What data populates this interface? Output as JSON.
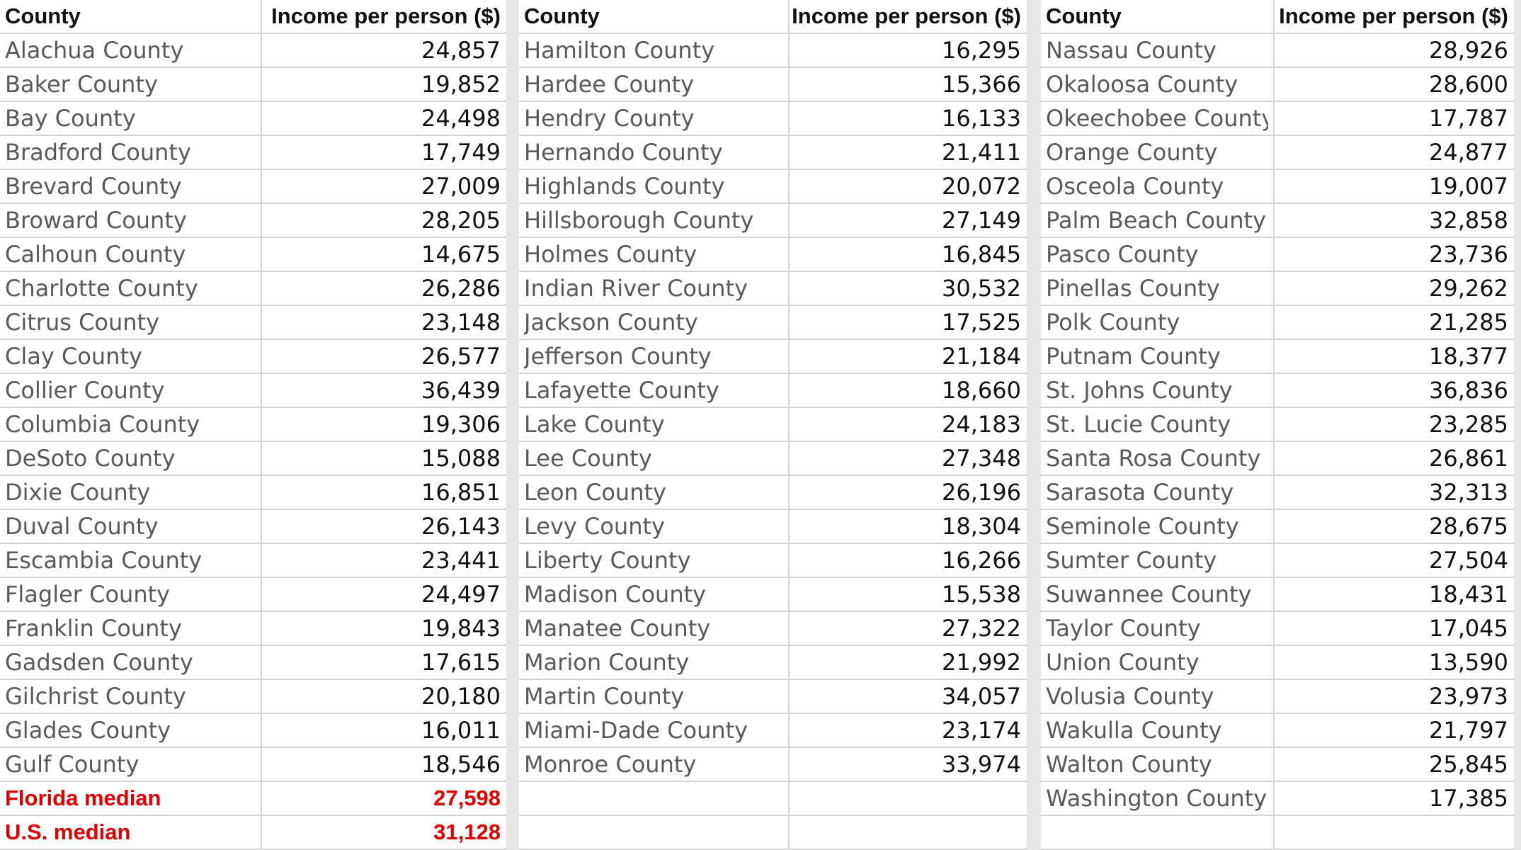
{
  "columns": [
    {
      "header_county": "County",
      "header_income": "Income per person ($)",
      "rows": [
        {
          "county": "Alachua County",
          "income": "24,857"
        },
        {
          "county": "Baker County",
          "income": "19,852"
        },
        {
          "county": "Bay County",
          "income": "24,498"
        },
        {
          "county": "Bradford County",
          "income": "17,749"
        },
        {
          "county": "Brevard County",
          "income": "27,009"
        },
        {
          "county": "Broward County",
          "income": "28,205"
        },
        {
          "county": "Calhoun County",
          "income": "14,675"
        },
        {
          "county": "Charlotte County",
          "income": "26,286"
        },
        {
          "county": "Citrus County",
          "income": "23,148"
        },
        {
          "county": "Clay County",
          "income": "26,577"
        },
        {
          "county": "Collier County",
          "income": "36,439"
        },
        {
          "county": "Columbia County",
          "income": "19,306"
        },
        {
          "county": "DeSoto County",
          "income": "15,088"
        },
        {
          "county": "Dixie County",
          "income": "16,851"
        },
        {
          "county": "Duval County",
          "income": "26,143"
        },
        {
          "county": "Escambia County",
          "income": "23,441"
        },
        {
          "county": "Flagler County",
          "income": "24,497"
        },
        {
          "county": "Franklin County",
          "income": "19,843"
        },
        {
          "county": "Gadsden County",
          "income": "17,615"
        },
        {
          "county": "Gilchrist County",
          "income": "20,180"
        },
        {
          "county": "Glades County",
          "income": "16,011"
        },
        {
          "county": "Gulf County",
          "income": "18,546"
        }
      ],
      "medians": [
        {
          "label": "Florida median",
          "income": "27,598"
        },
        {
          "label": "U.S. median",
          "income": "31,128"
        }
      ]
    },
    {
      "header_county": "County",
      "header_income": "Income per person ($)",
      "rows": [
        {
          "county": "Hamilton County",
          "income": "16,295"
        },
        {
          "county": "Hardee County",
          "income": "15,366"
        },
        {
          "county": "Hendry County",
          "income": "16,133"
        },
        {
          "county": "Hernando County",
          "income": "21,411"
        },
        {
          "county": "Highlands County",
          "income": "20,072"
        },
        {
          "county": "Hillsborough County",
          "income": "27,149"
        },
        {
          "county": "Holmes County",
          "income": "16,845"
        },
        {
          "county": "Indian River County",
          "income": "30,532"
        },
        {
          "county": "Jackson County",
          "income": "17,525"
        },
        {
          "county": "Jefferson County",
          "income": "21,184"
        },
        {
          "county": "Lafayette County",
          "income": "18,660"
        },
        {
          "county": "Lake County",
          "income": "24,183"
        },
        {
          "county": "Lee County",
          "income": "27,348"
        },
        {
          "county": "Leon County",
          "income": "26,196"
        },
        {
          "county": "Levy County",
          "income": "18,304"
        },
        {
          "county": "Liberty County",
          "income": "16,266"
        },
        {
          "county": "Madison County",
          "income": "15,538"
        },
        {
          "county": "Manatee County",
          "income": "27,322"
        },
        {
          "county": "Marion County",
          "income": "21,992"
        },
        {
          "county": "Martin County",
          "income": "34,057"
        },
        {
          "county": "Miami-Dade County",
          "income": "23,174"
        },
        {
          "county": "Monroe County",
          "income": "33,974"
        }
      ]
    },
    {
      "header_county": "County",
      "header_income": "Income per person ($)",
      "rows": [
        {
          "county": "Nassau County",
          "income": "28,926"
        },
        {
          "county": "Okaloosa County",
          "income": "28,600"
        },
        {
          "county": "Okeechobee County",
          "income": "17,787"
        },
        {
          "county": "Orange County",
          "income": "24,877"
        },
        {
          "county": "Osceola County",
          "income": "19,007"
        },
        {
          "county": "Palm Beach County",
          "income": "32,858"
        },
        {
          "county": "Pasco County",
          "income": "23,736"
        },
        {
          "county": "Pinellas County",
          "income": "29,262"
        },
        {
          "county": "Polk County",
          "income": "21,285"
        },
        {
          "county": "Putnam County",
          "income": "18,377"
        },
        {
          "county": "St. Johns County",
          "income": "36,836"
        },
        {
          "county": "St. Lucie County",
          "income": "23,285"
        },
        {
          "county": "Santa Rosa County",
          "income": "26,861"
        },
        {
          "county": "Sarasota County",
          "income": "32,313"
        },
        {
          "county": "Seminole County",
          "income": "28,675"
        },
        {
          "county": "Sumter County",
          "income": "27,504"
        },
        {
          "county": "Suwannee County",
          "income": "18,431"
        },
        {
          "county": "Taylor County",
          "income": "17,045"
        },
        {
          "county": "Union County",
          "income": "13,590"
        },
        {
          "county": "Volusia County",
          "income": "23,973"
        },
        {
          "county": "Wakulla County",
          "income": "21,797"
        },
        {
          "county": "Walton County",
          "income": "25,845"
        },
        {
          "county": "Washington County",
          "income": "17,385"
        }
      ]
    }
  ]
}
